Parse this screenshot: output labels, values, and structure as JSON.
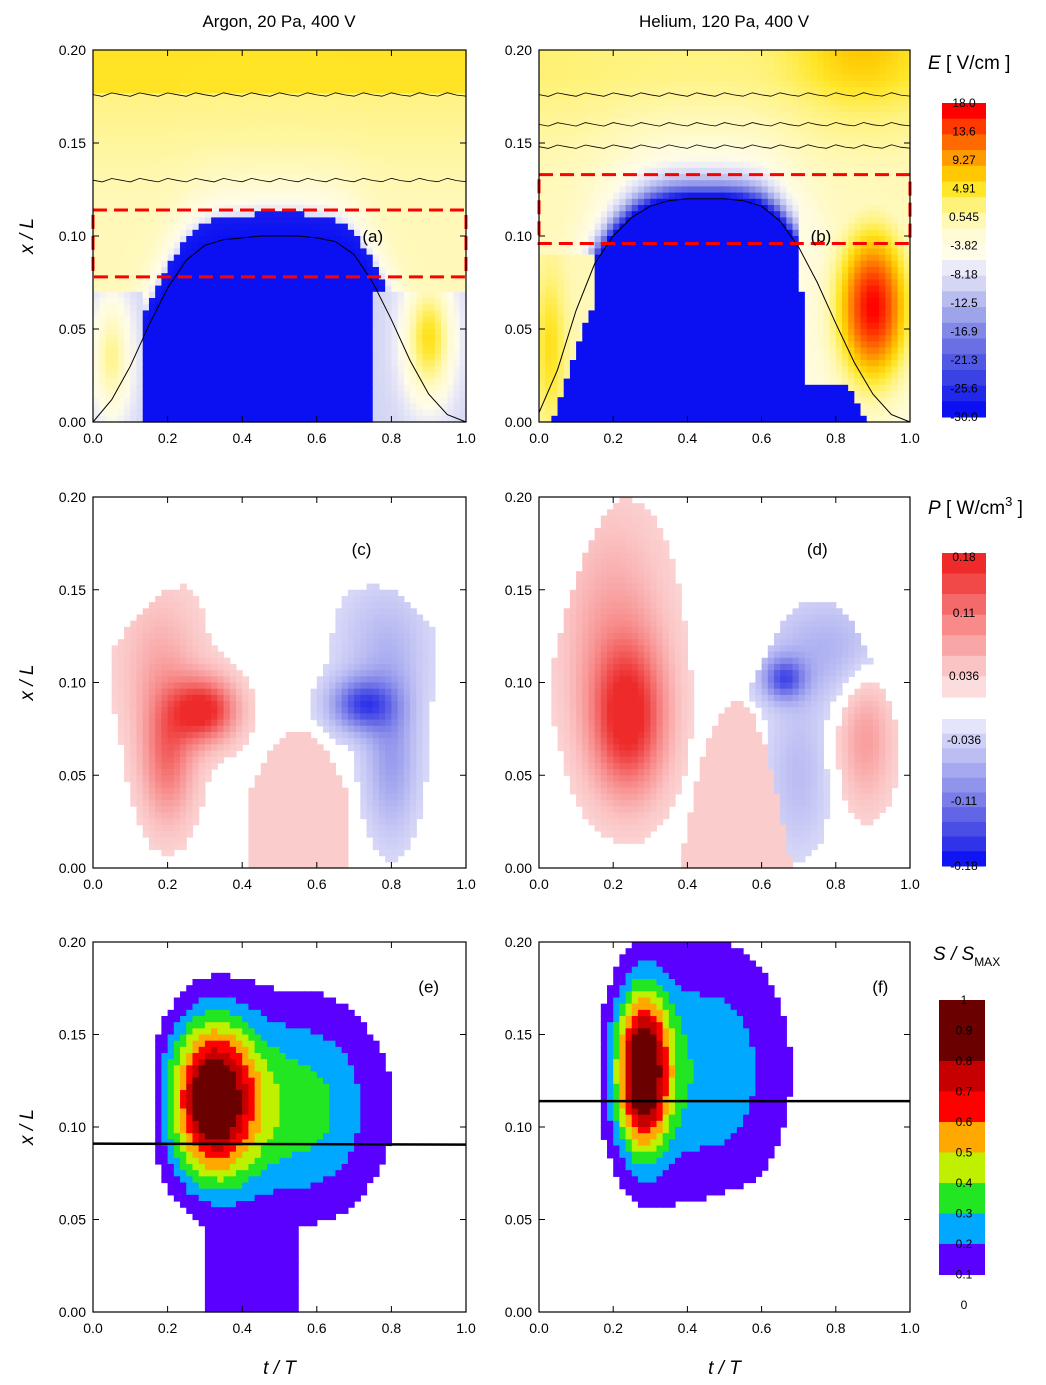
{
  "titles": {
    "left": "Argon, 20 Pa, 400 V",
    "right": "Helium, 120 Pa, 400 V"
  },
  "axes": {
    "ylabel": "x / L",
    "xlabel": "t / T",
    "xticks": [
      "0.0",
      "0.2",
      "0.4",
      "0.6",
      "0.8",
      "1.0"
    ],
    "yticks": [
      "0.00",
      "0.05",
      "0.10",
      "0.15",
      "0.20"
    ]
  },
  "colorbars": {
    "E": {
      "title_var": "E",
      "title_units": " [ V/cm ]",
      "labels": [
        "18.0",
        "13.6",
        "9.27",
        "4.91",
        "0.545",
        "-3.82",
        "-8.18",
        "-12.5",
        "-16.9",
        "-21.3",
        "-25.6",
        "-30.0"
      ]
    },
    "P": {
      "title_var": "P",
      "title_units_pre": " [ W/cm",
      "title_sup": "3",
      "title_units_post": " ]",
      "labels": [
        "0.18",
        "0.11",
        "0.036",
        "-0.036",
        "-0.11",
        "-0.18"
      ]
    },
    "S": {
      "title_var": "S / S",
      "title_sub": "MAX",
      "labels": [
        "1",
        "0.9",
        "0.8",
        "0.7",
        "0.6",
        "0.5",
        "0.4",
        "0.3",
        "0.2",
        "0.1",
        "0"
      ]
    }
  },
  "colors": {
    "E_scale": [
      "#ff0000",
      "#ff3a00",
      "#ff6a00",
      "#ff9a00",
      "#ffc800",
      "#ffe628",
      "#fff27a",
      "#fff8b4",
      "#fffbd6",
      "#fffce8",
      "#eaeaf8",
      "#d4d6f4",
      "#b8bcee",
      "#9ea4ea",
      "#8288e6",
      "#6a70e4",
      "#5058e4",
      "#3a42e6",
      "#2228ea",
      "#0a10f2"
    ],
    "P_pos": [
      "#fcdcdc",
      "#fbc4c4",
      "#f9a6a6",
      "#f88a8a",
      "#f46a6a",
      "#f14848",
      "#ee2a2a"
    ],
    "P_neg": [
      "#e4e4fa",
      "#cfd0f6",
      "#bbbdf3",
      "#a6a9ef",
      "#9194eb",
      "#7b7ee8",
      "#6266e6",
      "#4a4ee6",
      "#2f34ea",
      "#0e14f2"
    ],
    "S_scale": [
      "#5a00ff",
      "#00a8ff",
      "#22e622",
      "#bef000",
      "#ffa800",
      "#ff0000",
      "#c60000",
      "#6a0000"
    ],
    "box": "#ff0000"
  },
  "chart_data": [
    {
      "id": "a",
      "type": "heatmap",
      "panel_label": "(a)",
      "gas": "Argon",
      "pressure_Pa": 20,
      "voltage_V": 400,
      "quantity": "E",
      "units": "V/cm",
      "xlim": [
        0,
        1
      ],
      "ylim": [
        0,
        0.2
      ],
      "sheath_edge": [
        [
          0,
          0.0
        ],
        [
          0.05,
          0.012
        ],
        [
          0.1,
          0.03
        ],
        [
          0.15,
          0.052
        ],
        [
          0.2,
          0.072
        ],
        [
          0.25,
          0.087
        ],
        [
          0.3,
          0.095
        ],
        [
          0.35,
          0.098
        ],
        [
          0.4,
          0.099
        ],
        [
          0.45,
          0.1
        ],
        [
          0.5,
          0.1
        ],
        [
          0.55,
          0.1
        ],
        [
          0.6,
          0.099
        ],
        [
          0.65,
          0.097
        ],
        [
          0.7,
          0.09
        ],
        [
          0.75,
          0.075
        ],
        [
          0.8,
          0.055
        ],
        [
          0.85,
          0.033
        ],
        [
          0.9,
          0.015
        ],
        [
          0.95,
          0.004
        ],
        [
          1.0,
          0.0
        ]
      ],
      "dashed_box": {
        "x": [
          0,
          1
        ],
        "y": [
          0.078,
          0.114
        ]
      },
      "features": [
        {
          "kind": "negative_band",
          "y_top": 0.112
        },
        {
          "kind": "positive_lobe",
          "cx": 0.05,
          "cy": 0.035,
          "value": 0.545
        },
        {
          "kind": "positive_lobe",
          "cx": 0.9,
          "cy": 0.045,
          "value": 4.91
        }
      ],
      "contour_levels_y": [
        0.13,
        0.176
      ]
    },
    {
      "id": "b",
      "type": "heatmap",
      "panel_label": "(b)",
      "gas": "Helium",
      "pressure_Pa": 120,
      "voltage_V": 400,
      "quantity": "E",
      "units": "V/cm",
      "xlim": [
        0,
        1
      ],
      "ylim": [
        0,
        0.2
      ],
      "sheath_edge": [
        [
          0,
          0.005
        ],
        [
          0.05,
          0.028
        ],
        [
          0.1,
          0.06
        ],
        [
          0.15,
          0.085
        ],
        [
          0.2,
          0.1
        ],
        [
          0.25,
          0.11
        ],
        [
          0.3,
          0.116
        ],
        [
          0.35,
          0.119
        ],
        [
          0.4,
          0.12
        ],
        [
          0.45,
          0.12
        ],
        [
          0.5,
          0.12
        ],
        [
          0.55,
          0.119
        ],
        [
          0.6,
          0.116
        ],
        [
          0.65,
          0.108
        ],
        [
          0.7,
          0.094
        ],
        [
          0.75,
          0.075
        ],
        [
          0.8,
          0.053
        ],
        [
          0.85,
          0.032
        ],
        [
          0.9,
          0.015
        ],
        [
          0.95,
          0.004
        ],
        [
          1.0,
          0.0
        ]
      ],
      "dashed_box": {
        "x": [
          0,
          1
        ],
        "y": [
          0.096,
          0.133
        ]
      },
      "features": [
        {
          "kind": "positive_lobe",
          "cx": 0.9,
          "cy": 0.062,
          "value": 18.0
        },
        {
          "kind": "positive_lobe",
          "cx": 0.08,
          "cy": 0.04,
          "value": 4.91
        },
        {
          "kind": "positive_region_top",
          "cx": 0.87,
          "cy": 0.2
        }
      ],
      "contour_levels_y": [
        0.148,
        0.16,
        0.176
      ]
    },
    {
      "id": "c",
      "type": "heatmap",
      "panel_label": "(c)",
      "gas": "Argon",
      "quantity": "P",
      "units": "W/cm^3",
      "xlim": [
        0,
        1
      ],
      "ylim": [
        0,
        0.2
      ],
      "features": [
        {
          "kind": "positive_lobe",
          "x_range": [
            0.05,
            0.5
          ],
          "y_peak": 0.09,
          "y_top": 0.152,
          "value_max": 0.18
        },
        {
          "kind": "negative_lobe",
          "x_range": [
            0.5,
            0.98
          ],
          "y_peak": 0.09,
          "y_top": 0.152,
          "value_min": -0.11
        },
        {
          "kind": "positive_spike",
          "x_range": [
            0.41,
            0.68
          ],
          "y_top": 0.074
        }
      ]
    },
    {
      "id": "d",
      "type": "heatmap",
      "panel_label": "(d)",
      "gas": "Helium",
      "quantity": "P",
      "units": "W/cm^3",
      "xlim": [
        0,
        1
      ],
      "ylim": [
        0,
        0.2
      ],
      "features": [
        {
          "kind": "positive_lobe",
          "x_range": [
            0.05,
            0.55
          ],
          "y_peak": 0.08,
          "y_top": 0.199,
          "value_max": 0.18
        },
        {
          "kind": "negative_lobe",
          "x_range": [
            0.55,
            1.0
          ],
          "y_peak": 0.1,
          "y_top": 0.145,
          "value_min": -0.11
        },
        {
          "kind": "positive_lobe",
          "cx": 0.88,
          "cy": 0.07,
          "value": 0.036
        },
        {
          "kind": "positive_spike",
          "x_range": [
            0.39,
            0.68
          ],
          "y_top": 0.09
        }
      ]
    },
    {
      "id": "e",
      "type": "heatmap",
      "panel_label": "(e)",
      "gas": "Argon",
      "quantity": "S / S_MAX",
      "xlim": [
        0,
        1
      ],
      "ylim": [
        0,
        0.2
      ],
      "peak": {
        "x": 0.32,
        "y": 0.115,
        "value": 0.9
      },
      "horizontal_line": {
        "x": [
          0,
          1
        ],
        "y": [
          0.091,
          0.0905
        ]
      }
    },
    {
      "id": "f",
      "type": "heatmap",
      "panel_label": "(f)",
      "gas": "Helium",
      "quantity": "S / S_MAX",
      "xlim": [
        0,
        1
      ],
      "ylim": [
        0,
        0.2
      ],
      "peak": {
        "x": 0.28,
        "y": 0.13,
        "value": 0.9
      },
      "horizontal_line": {
        "x": [
          0,
          1
        ],
        "y": [
          0.114,
          0.114
        ]
      }
    }
  ]
}
